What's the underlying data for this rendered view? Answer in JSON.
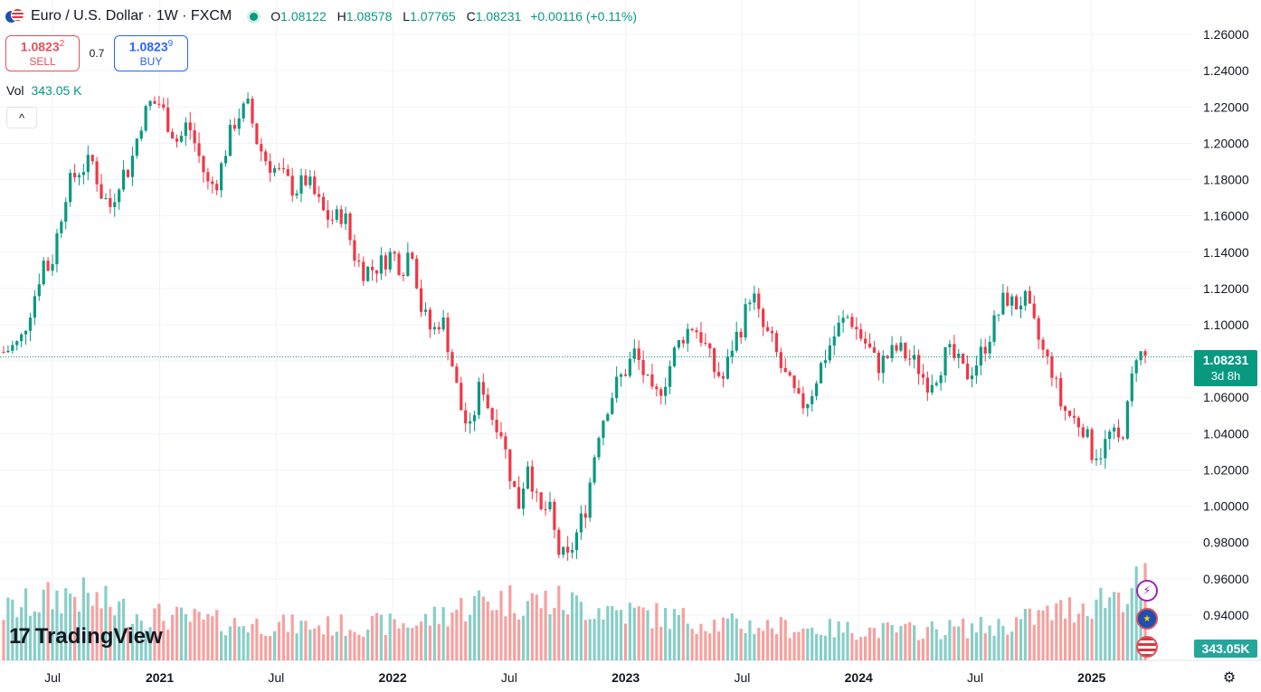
{
  "header": {
    "title": "Euro / U.S. Dollar · 1W · FXCM",
    "open_label": "O",
    "open": "1.08122",
    "high_label": "H",
    "high": "1.08578",
    "low_label": "L",
    "low": "1.07765",
    "close_label": "C",
    "close": "1.08231",
    "change": "+0.00116 (+0.11%)"
  },
  "trade": {
    "sell_price": "1.0823",
    "sell_price_small": "2",
    "sell_label": "SELL",
    "spread": "0.7",
    "buy_price": "1.0823",
    "buy_price_small": "9",
    "buy_label": "BUY"
  },
  "volume": {
    "label": "Vol",
    "value": "343.05 K",
    "axis_label": "343.05K"
  },
  "collapse_glyph": "^",
  "logo": {
    "mark": "17",
    "text": "TradingView"
  },
  "price_label": {
    "price": "1.08231",
    "countdown": "3d 8h"
  },
  "icons": {
    "event": "lightning-icon",
    "eu": "eu-flag-icon",
    "us": "us-flag-icon",
    "settings": "gear-icon"
  },
  "colors": {
    "up": "#089981",
    "down": "#f23645",
    "vol_up": "#26a69a",
    "vol_down": "#ef5350",
    "grid": "#f0f3fa"
  },
  "chart_data": {
    "type": "candlestick",
    "symbol": "EURUSD",
    "interval": "1W",
    "ylim": [
      0.93,
      1.27
    ],
    "y_ticks": [
      "0.94000",
      "0.96000",
      "0.98000",
      "1.00000",
      "1.02000",
      "1.04000",
      "1.06000",
      "1.08000",
      "1.10000",
      "1.12000",
      "1.14000",
      "1.16000",
      "1.18000",
      "1.20000",
      "1.22000",
      "1.24000",
      "1.26000"
    ],
    "x_ticks": [
      "Jul",
      "2021",
      "Jul",
      "2022",
      "Jul",
      "2023",
      "Jul",
      "2024",
      "Jul",
      "2025"
    ],
    "last_price": 1.08231,
    "close_path": [
      [
        2020.33,
        1.085
      ],
      [
        2020.4,
        1.09
      ],
      [
        2020.46,
        1.115
      ],
      [
        2020.5,
        1.135
      ],
      [
        2020.53,
        1.13
      ],
      [
        2020.56,
        1.15
      ],
      [
        2020.6,
        1.175
      ],
      [
        2020.65,
        1.185
      ],
      [
        2020.71,
        1.19
      ],
      [
        2020.75,
        1.172
      ],
      [
        2020.79,
        1.165
      ],
      [
        2020.83,
        1.182
      ],
      [
        2020.87,
        1.186
      ],
      [
        2020.92,
        1.212
      ],
      [
        2020.96,
        1.222
      ],
      [
        2021.0,
        1.222
      ],
      [
        2021.04,
        1.21
      ],
      [
        2021.08,
        1.2
      ],
      [
        2021.12,
        1.212
      ],
      [
        2021.17,
        1.192
      ],
      [
        2021.21,
        1.176
      ],
      [
        2021.25,
        1.18
      ],
      [
        2021.29,
        1.2
      ],
      [
        2021.33,
        1.215
      ],
      [
        2021.38,
        1.22
      ],
      [
        2021.42,
        1.2
      ],
      [
        2021.46,
        1.19
      ],
      [
        2021.5,
        1.185
      ],
      [
        2021.54,
        1.18
      ],
      [
        2021.58,
        1.174
      ],
      [
        2021.63,
        1.18
      ],
      [
        2021.67,
        1.17
      ],
      [
        2021.71,
        1.16
      ],
      [
        2021.75,
        1.158
      ],
      [
        2021.79,
        1.162
      ],
      [
        2021.83,
        1.14
      ],
      [
        2021.87,
        1.13
      ],
      [
        2021.92,
        1.131
      ],
      [
        2021.96,
        1.135
      ],
      [
        2022.0,
        1.14
      ],
      [
        2022.04,
        1.13
      ],
      [
        2022.08,
        1.145
      ],
      [
        2022.12,
        1.11
      ],
      [
        2022.17,
        1.095
      ],
      [
        2022.21,
        1.105
      ],
      [
        2022.25,
        1.082
      ],
      [
        2022.29,
        1.055
      ],
      [
        2022.33,
        1.04
      ],
      [
        2022.38,
        1.07
      ],
      [
        2022.42,
        1.05
      ],
      [
        2022.46,
        1.045
      ],
      [
        2022.5,
        1.02
      ],
      [
        2022.54,
        1.0
      ],
      [
        2022.58,
        1.025
      ],
      [
        2022.63,
        0.995
      ],
      [
        2022.67,
        1.0
      ],
      [
        2022.71,
        0.975
      ],
      [
        2022.75,
        0.97
      ],
      [
        2022.79,
        0.985
      ],
      [
        2022.83,
        1.0
      ],
      [
        2022.88,
        1.04
      ],
      [
        2022.92,
        1.055
      ],
      [
        2022.96,
        1.067
      ],
      [
        2023.0,
        1.075
      ],
      [
        2023.04,
        1.085
      ],
      [
        2023.08,
        1.072
      ],
      [
        2023.12,
        1.058
      ],
      [
        2023.17,
        1.07
      ],
      [
        2023.21,
        1.085
      ],
      [
        2023.25,
        1.095
      ],
      [
        2023.29,
        1.1
      ],
      [
        2023.33,
        1.092
      ],
      [
        2023.38,
        1.075
      ],
      [
        2023.42,
        1.07
      ],
      [
        2023.46,
        1.09
      ],
      [
        2023.5,
        1.1
      ],
      [
        2023.54,
        1.12
      ],
      [
        2023.58,
        1.1
      ],
      [
        2023.63,
        1.09
      ],
      [
        2023.67,
        1.075
      ],
      [
        2023.71,
        1.065
      ],
      [
        2023.75,
        1.055
      ],
      [
        2023.79,
        1.06
      ],
      [
        2023.83,
        1.075
      ],
      [
        2023.88,
        1.09
      ],
      [
        2023.92,
        1.1
      ],
      [
        2023.96,
        1.105
      ],
      [
        2024.0,
        1.095
      ],
      [
        2024.04,
        1.088
      ],
      [
        2024.08,
        1.077
      ],
      [
        2024.12,
        1.082
      ],
      [
        2024.17,
        1.087
      ],
      [
        2024.21,
        1.082
      ],
      [
        2024.25,
        1.078
      ],
      [
        2024.29,
        1.068
      ],
      [
        2024.33,
        1.072
      ],
      [
        2024.38,
        1.085
      ],
      [
        2024.42,
        1.08
      ],
      [
        2024.46,
        1.072
      ],
      [
        2024.5,
        1.078
      ],
      [
        2024.54,
        1.088
      ],
      [
        2024.58,
        1.1
      ],
      [
        2024.63,
        1.116
      ],
      [
        2024.67,
        1.11
      ],
      [
        2024.71,
        1.115
      ],
      [
        2024.75,
        1.1
      ],
      [
        2024.79,
        1.085
      ],
      [
        2024.83,
        1.075
      ],
      [
        2024.87,
        1.055
      ],
      [
        2024.92,
        1.048
      ],
      [
        2024.96,
        1.045
      ],
      [
        2025.0,
        1.03
      ],
      [
        2025.04,
        1.03
      ],
      [
        2025.08,
        1.04
      ],
      [
        2025.12,
        1.035
      ],
      [
        2025.15,
        1.05
      ],
      [
        2025.19,
        1.085
      ],
      [
        2025.23,
        1.082
      ]
    ],
    "volume_path": [
      [
        2020.33,
        0.4
      ],
      [
        2020.62,
        0.55
      ],
      [
        2020.9,
        0.38
      ],
      [
        2021.3,
        0.3
      ],
      [
        2021.7,
        0.28
      ],
      [
        2022.1,
        0.3
      ],
      [
        2022.4,
        0.5
      ],
      [
        2022.7,
        0.48
      ],
      [
        2023.0,
        0.4
      ],
      [
        2023.4,
        0.3
      ],
      [
        2023.8,
        0.26
      ],
      [
        2024.2,
        0.24
      ],
      [
        2024.6,
        0.28
      ],
      [
        2024.9,
        0.42
      ],
      [
        2025.23,
        0.62
      ]
    ]
  }
}
